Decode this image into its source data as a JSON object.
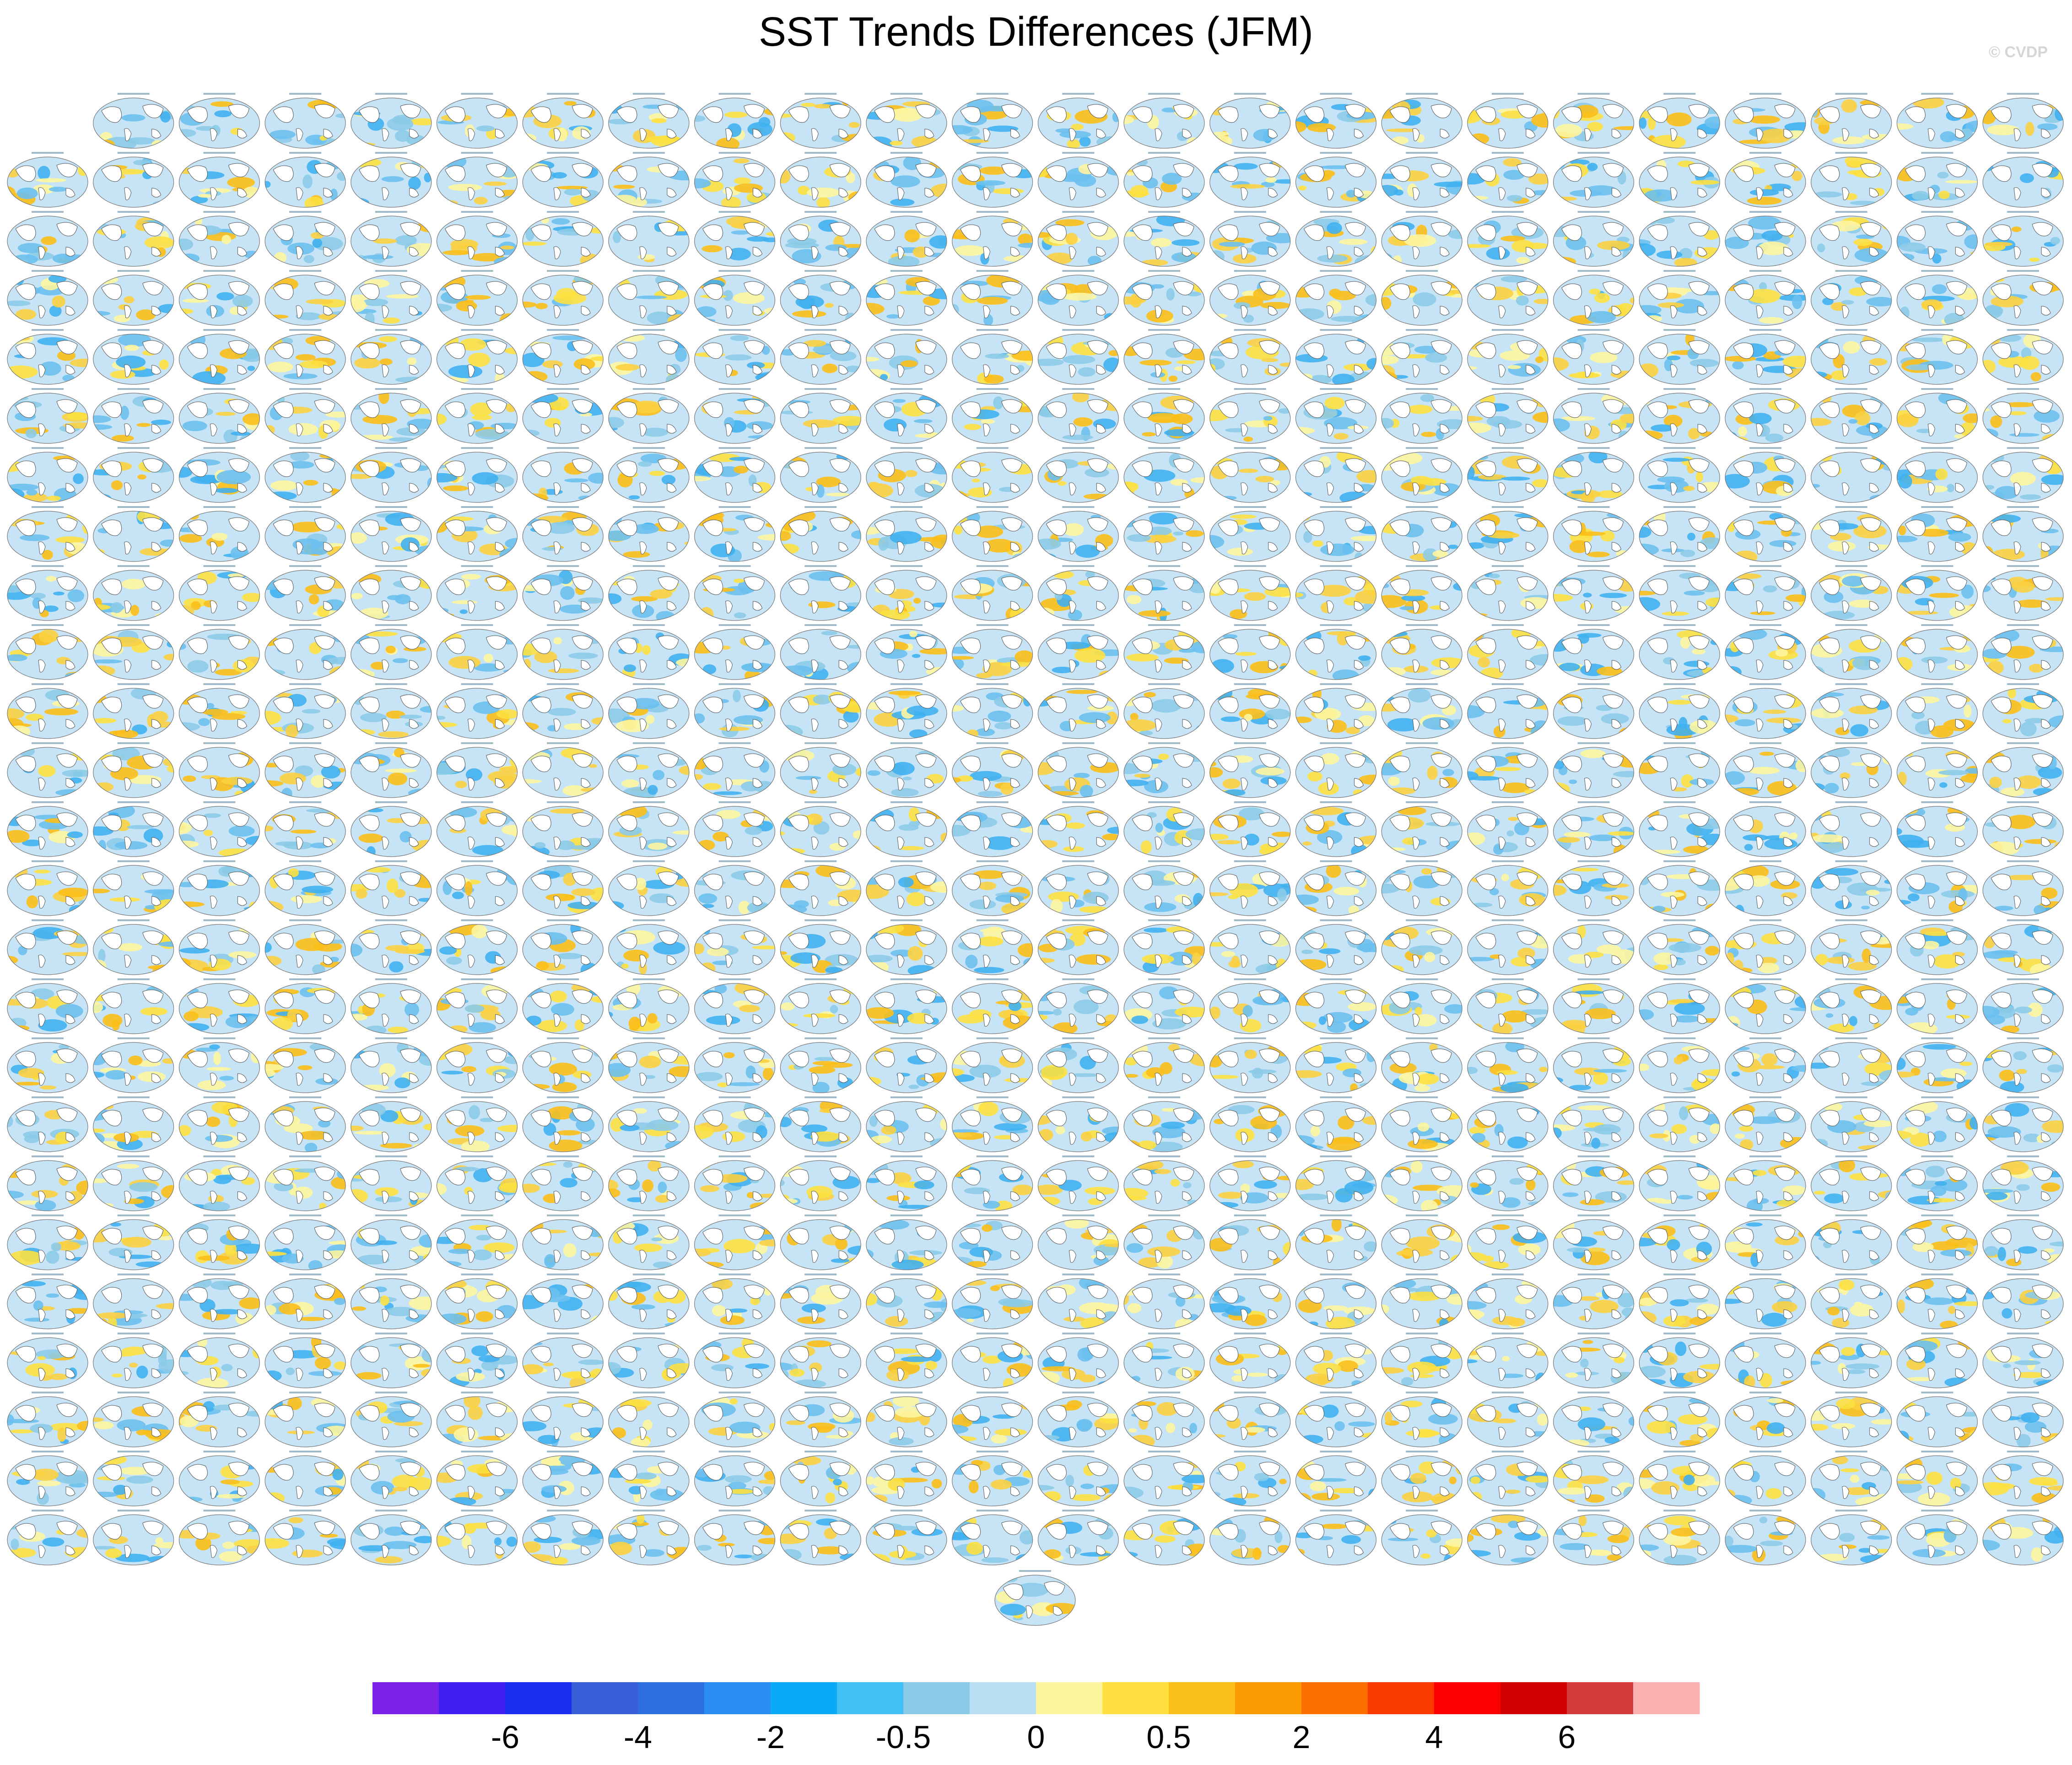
{
  "title": "SST Trends Differences (JFM)",
  "watermark": "© CVDP",
  "colorbar": {
    "colors": [
      "#7b22e8",
      "#4020f0",
      "#1a2cf0",
      "#3a5fd8",
      "#2e6fe0",
      "#2a8cf5",
      "#0aaaf8",
      "#40c0f5",
      "#8ccbe8",
      "#b8def2",
      "#fdf5a0",
      "#fde040",
      "#fbbf1a",
      "#fb9a00",
      "#fb7000",
      "#fb3a00",
      "#fb0000",
      "#d00000",
      "#d43a3a",
      "#fdb0b0"
    ],
    "labels": [
      -6,
      -4,
      -2,
      -0.5,
      0,
      0.5,
      2,
      4,
      6
    ]
  }
}
